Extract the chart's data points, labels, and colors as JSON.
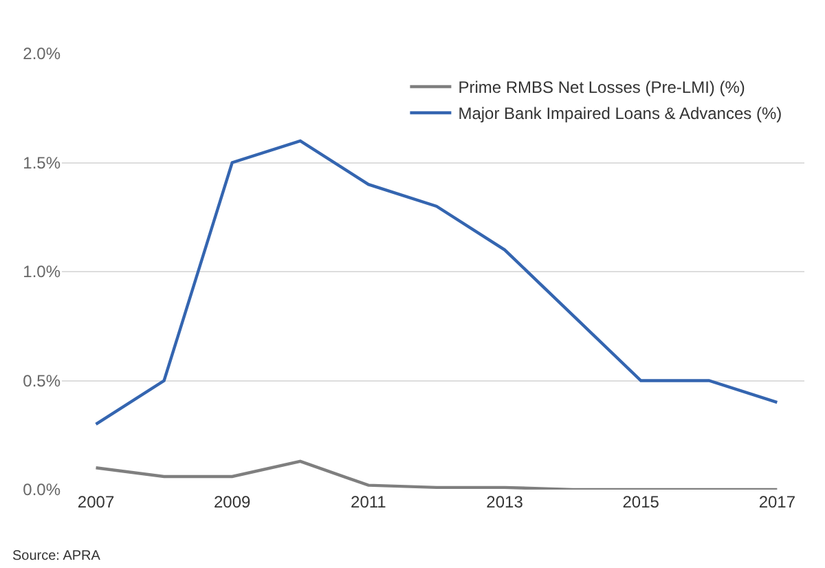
{
  "chart_data": {
    "type": "line",
    "x": [
      2007,
      2008,
      2009,
      2010,
      2011,
      2012,
      2013,
      2014,
      2015,
      2016,
      2017
    ],
    "series": [
      {
        "name": "Prime RMBS Net Losses (Pre-LMI) (%)",
        "color": "#7f7f7f",
        "values": [
          0.1,
          0.06,
          0.06,
          0.13,
          0.02,
          0.01,
          0.01,
          0.0,
          0.0,
          0.0,
          0.0
        ]
      },
      {
        "name": "Major Bank Impaired Loans & Advances (%)",
        "color": "#3465b0",
        "values": [
          0.3,
          0.5,
          1.5,
          1.6,
          1.4,
          1.3,
          1.1,
          0.8,
          0.5,
          0.5,
          0.4
        ]
      }
    ],
    "xlim": [
      2006.5,
      2017.4
    ],
    "xticks": [
      2007,
      2009,
      2011,
      2013,
      2015,
      2017
    ],
    "ylim": [
      0,
      2.0
    ],
    "yticks": [
      {
        "value": 0,
        "label": "0.0%"
      },
      {
        "value": 0.5,
        "label": "0.5%"
      },
      {
        "value": 1.0,
        "label": "1.0%"
      },
      {
        "value": 1.5,
        "label": "1.5%"
      },
      {
        "value": 2.0,
        "label": "2.0%"
      }
    ],
    "grid": "y",
    "legend": "top right",
    "marker": "none",
    "line_style": "solid",
    "annotations": [
      "Source: APRA"
    ]
  }
}
